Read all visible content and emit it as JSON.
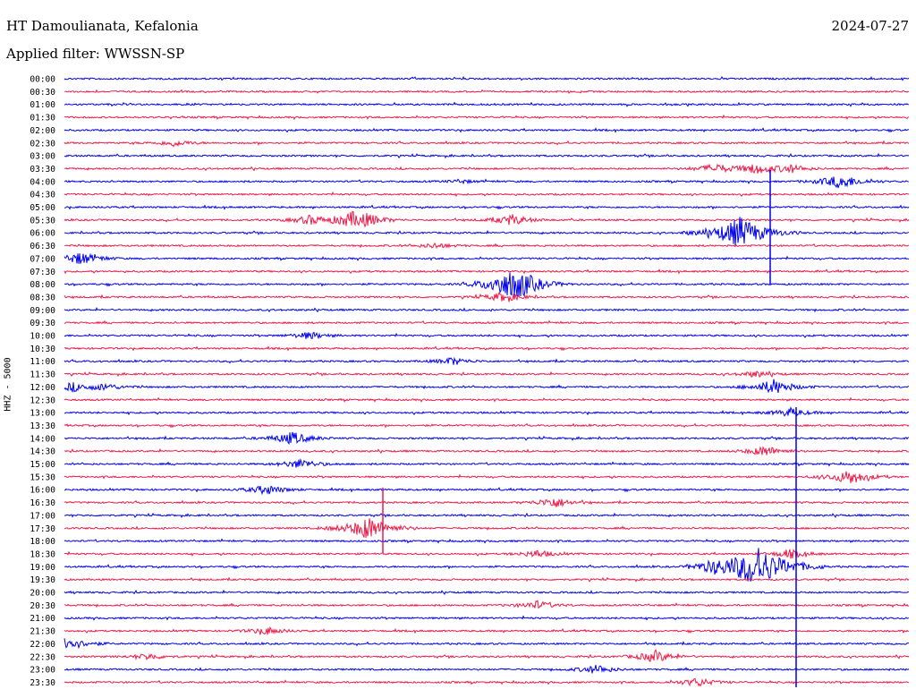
{
  "header": {
    "station": "HT Damoulianata, Kefalonia",
    "date": "2024-07-27",
    "filter_label": "Applied filter: WWSSN-SP"
  },
  "chart_data": {
    "type": "line",
    "ylabel": "HHZ - 5000",
    "colors": [
      "#0000ee",
      "#ee1c4a"
    ],
    "time_labels": [
      "00:00",
      "00:30",
      "01:00",
      "01:30",
      "02:00",
      "02:30",
      "03:00",
      "03:30",
      "04:00",
      "04:30",
      "05:00",
      "05:30",
      "06:00",
      "06:30",
      "07:00",
      "07:30",
      "08:00",
      "08:30",
      "09:00",
      "09:30",
      "10:00",
      "10:30",
      "11:00",
      "11:30",
      "12:00",
      "12:30",
      "13:00",
      "13:30",
      "14:00",
      "14:30",
      "15:00",
      "15:30",
      "16:00",
      "16:30",
      "17:00",
      "17:30",
      "18:00",
      "18:30",
      "19:00",
      "19:30",
      "20:00",
      "20:30",
      "21:00",
      "21:30",
      "22:00",
      "22:30",
      "23:00",
      "23:30"
    ],
    "traces_note": "Each row is a 30-minute helicorder trace; event bursts listed as [row_index, position_fraction_along_trace, relative_amplitude]",
    "events": [
      [
        5,
        0.13,
        0.6
      ],
      [
        7,
        0.77,
        0.9
      ],
      [
        7,
        0.82,
        0.9
      ],
      [
        7,
        0.86,
        0.7
      ],
      [
        8,
        0.47,
        0.3
      ],
      [
        8,
        0.92,
        1.4
      ],
      [
        11,
        0.29,
        0.8
      ],
      [
        11,
        0.34,
        1.3
      ],
      [
        11,
        0.36,
        0.8
      ],
      [
        11,
        0.53,
        1.0
      ],
      [
        12,
        0.8,
        3.0
      ],
      [
        13,
        0.44,
        0.5
      ],
      [
        14,
        0.02,
        1.2
      ],
      [
        16,
        0.52,
        1.5
      ],
      [
        16,
        0.54,
        2.2
      ],
      [
        17,
        0.52,
        0.9
      ],
      [
        20,
        0.29,
        0.7
      ],
      [
        22,
        0.46,
        0.7
      ],
      [
        23,
        0.82,
        0.6
      ],
      [
        24,
        0.01,
        0.8
      ],
      [
        24,
        0.05,
        0.6
      ],
      [
        24,
        0.84,
        1.4
      ],
      [
        26,
        0.86,
        0.8
      ],
      [
        28,
        0.27,
        1.2
      ],
      [
        29,
        0.83,
        1.0
      ],
      [
        30,
        0.28,
        0.9
      ],
      [
        31,
        0.93,
        1.4
      ],
      [
        32,
        0.24,
        0.9
      ],
      [
        33,
        0.58,
        1.0
      ],
      [
        35,
        0.36,
        2.2
      ],
      [
        38,
        0.82,
        4.0
      ],
      [
        38,
        0.77,
        0.7
      ],
      [
        37,
        0.56,
        0.7
      ],
      [
        37,
        0.86,
        0.8
      ],
      [
        41,
        0.56,
        0.8
      ],
      [
        43,
        0.24,
        0.7
      ],
      [
        44,
        0.0,
        1.5
      ],
      [
        45,
        0.1,
        0.6
      ],
      [
        45,
        0.7,
        1.1
      ],
      [
        46,
        0.63,
        0.8
      ],
      [
        47,
        0.75,
        0.8
      ]
    ]
  }
}
